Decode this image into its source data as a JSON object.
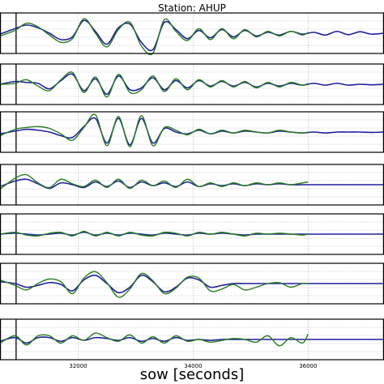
{
  "chart_data": {
    "type": "line",
    "title": "Station: AHUP",
    "xlabel": "sow [seconds]",
    "xlim": [
      30640,
      37320
    ],
    "xticks": [
      32000,
      34000,
      36000
    ],
    "xtick_labels": [
      "32000",
      "34000",
      "36000"
    ],
    "event_time": 30920,
    "grid": true,
    "colors": {
      "synthetic": "#1f1fa0",
      "observed": "#2a7d1f"
    },
    "panels": [
      {
        "synthetic": {
          "x": [
            30640,
            30900,
            31100,
            31300,
            31500,
            31700,
            31900,
            32100,
            32300,
            32500,
            32700,
            32900,
            33100,
            33300,
            33500,
            33700,
            33900,
            34100,
            34300,
            34500,
            34700,
            34900,
            35100,
            35300,
            35500,
            35700,
            35900,
            36100,
            36300,
            36500,
            36700,
            36900,
            37100,
            37320
          ],
          "y": [
            -0.05,
            0.25,
            0.45,
            0.3,
            0.0,
            -0.35,
            -0.2,
            0.7,
            0.1,
            -0.6,
            0.3,
            0.5,
            -0.5,
            -0.9,
            0.6,
            0.2,
            -0.3,
            0.15,
            -0.25,
            0.2,
            -0.2,
            0.15,
            -0.15,
            0.05,
            -0.1,
            0.1,
            -0.05,
            0.05,
            -0.1,
            0.1,
            -0.08,
            0.08,
            -0.05,
            0.0
          ]
        },
        "observed": {
          "x": [
            30640,
            30900,
            31100,
            31300,
            31500,
            31700,
            31900,
            32100,
            32300,
            32500,
            32700,
            32900,
            33100,
            33300,
            33500,
            33700,
            33900,
            34100,
            34300,
            34500,
            34700,
            34900,
            35100,
            35300,
            35500,
            35700,
            35900,
            36000
          ],
          "y": [
            -0.15,
            0.15,
            0.55,
            0.35,
            -0.1,
            -0.5,
            -0.3,
            0.8,
            0.0,
            -0.75,
            0.2,
            0.6,
            -0.7,
            -1.1,
            0.75,
            0.1,
            -0.4,
            0.25,
            -0.35,
            0.25,
            -0.3,
            0.2,
            -0.2,
            0.1,
            -0.15,
            0.1,
            -0.1,
            0.05
          ]
        }
      },
      {
        "synthetic": {
          "x": [
            30640,
            30900,
            31100,
            31300,
            31500,
            31700,
            31900,
            32100,
            32300,
            32500,
            32700,
            32900,
            33100,
            33300,
            33500,
            33700,
            33900,
            34100,
            34300,
            34500,
            34700,
            34900,
            35100,
            35300,
            35500,
            35700,
            35900,
            36100,
            36300,
            36500,
            36700,
            36900,
            37100,
            37320
          ],
          "y": [
            0.0,
            0.15,
            0.1,
            0.05,
            -0.25,
            0.2,
            0.55,
            -0.35,
            0.3,
            -0.55,
            0.45,
            -0.3,
            -0.2,
            0.35,
            -0.3,
            0.2,
            -0.2,
            0.2,
            -0.1,
            0.15,
            -0.1,
            0.1,
            -0.15,
            0.05,
            -0.1,
            0.05,
            -0.05,
            0.05,
            -0.05,
            0.05,
            -0.05,
            0.0,
            -0.03,
            0.0
          ]
        },
        "observed": {
          "x": [
            30640,
            30900,
            31100,
            31300,
            31500,
            31700,
            31900,
            32100,
            32300,
            32500,
            32700,
            32900,
            33100,
            33300,
            33500,
            33700,
            33900,
            34100,
            34300,
            34500,
            34700,
            34900,
            35100,
            35300,
            35500,
            35700,
            35900,
            36000
          ],
          "y": [
            0.0,
            0.05,
            0.25,
            -0.1,
            -0.35,
            0.25,
            0.65,
            -0.45,
            0.4,
            -0.7,
            0.55,
            -0.45,
            -0.3,
            0.45,
            -0.4,
            0.3,
            -0.3,
            0.25,
            -0.15,
            0.2,
            -0.15,
            0.15,
            -0.2,
            0.1,
            -0.15,
            0.1,
            -0.05,
            0.05
          ]
        }
      },
      {
        "synthetic": {
          "x": [
            30640,
            30900,
            31100,
            31300,
            31500,
            31700,
            31900,
            32100,
            32300,
            32500,
            32700,
            32900,
            33100,
            33300,
            33500,
            33700,
            33900,
            34100,
            34300,
            34500,
            34700,
            34900,
            35100,
            35300,
            35500,
            35700,
            35900,
            36100,
            36300,
            36500,
            36700,
            36900,
            37100,
            37320
          ],
          "y": [
            -0.1,
            0.05,
            0.15,
            0.1,
            0.0,
            -0.2,
            -0.3,
            0.3,
            0.75,
            -0.6,
            0.75,
            -0.7,
            0.75,
            -0.6,
            0.2,
            0.0,
            -0.1,
            0.1,
            -0.1,
            0.05,
            -0.05,
            0.05,
            0.0,
            -0.05,
            0.05,
            0.0,
            -0.05,
            0.0,
            -0.05,
            0.0,
            0.0,
            0.0,
            -0.02,
            0.0
          ]
        },
        "observed": {
          "x": [
            30640,
            30900,
            31100,
            31300,
            31500,
            31700,
            31900,
            32100,
            32300,
            32500,
            32700,
            32900,
            33100,
            33300,
            33500,
            33700,
            33900,
            34100,
            34300,
            34500,
            34700,
            34900,
            35100,
            35300,
            35500,
            35700,
            35900,
            36000
          ],
          "y": [
            -0.2,
            0.15,
            0.25,
            0.3,
            0.2,
            -0.1,
            -0.45,
            0.25,
            0.95,
            -0.75,
            0.85,
            -0.8,
            0.9,
            -0.75,
            0.25,
            0.1,
            -0.15,
            0.15,
            -0.1,
            0.1,
            -0.05,
            0.1,
            0.0,
            -0.05,
            0.1,
            0.0,
            -0.05,
            0.0
          ]
        }
      },
      {
        "synthetic": {
          "x": [
            30640,
            30900,
            31100,
            31300,
            31500,
            31700,
            31900,
            32100,
            32300,
            32500,
            32700,
            32900,
            33100,
            33300,
            33500,
            33700,
            33900,
            34100,
            34300,
            34500,
            34700,
            34900,
            35100,
            35300,
            35500,
            35700,
            35900,
            36100,
            36300,
            36500,
            36700,
            36900,
            37100,
            37320
          ],
          "y": [
            -0.1,
            0.2,
            0.3,
            0.05,
            -0.2,
            0.1,
            0.0,
            -0.15,
            0.15,
            -0.1,
            0.2,
            -0.15,
            0.15,
            -0.05,
            0.1,
            -0.1,
            0.15,
            -0.1,
            0.05,
            -0.05,
            0.05,
            -0.05,
            0.05,
            0.0,
            0.05,
            0.0,
            0.0,
            0.0,
            0.0,
            0.0,
            0.0,
            0.0,
            0.0,
            0.0
          ]
        },
        "observed": {
          "x": [
            30640,
            30900,
            31100,
            31300,
            31500,
            31700,
            31900,
            32100,
            32300,
            32500,
            32700,
            32900,
            33100,
            33300,
            33500,
            33700,
            33900,
            34100,
            34300,
            34500,
            34700,
            34900,
            35100,
            35300,
            35500,
            35700,
            35900,
            36000
          ],
          "y": [
            -0.25,
            0.35,
            0.55,
            0.1,
            -0.15,
            0.3,
            0.05,
            -0.1,
            0.25,
            -0.15,
            0.3,
            -0.2,
            0.25,
            -0.05,
            0.2,
            -0.15,
            0.3,
            -0.1,
            0.1,
            -0.1,
            0.1,
            -0.05,
            0.1,
            0.0,
            0.1,
            0.0,
            0.1,
            0.15
          ]
        }
      },
      {
        "synthetic": {
          "x": [
            30640,
            30900,
            31100,
            31300,
            31500,
            31700,
            31900,
            32100,
            32300,
            32500,
            32700,
            32900,
            33100,
            33300,
            33500,
            33700,
            33900,
            34100,
            34300,
            34500,
            34700,
            34900,
            35100,
            35300,
            35500,
            35700,
            35900,
            36100,
            36300,
            36500,
            36700,
            36900,
            37100,
            37320
          ],
          "y": [
            0.0,
            0.05,
            0.0,
            -0.05,
            0.0,
            0.05,
            -0.05,
            0.1,
            -0.05,
            0.05,
            -0.05,
            0.05,
            0.0,
            -0.05,
            0.05,
            0.0,
            -0.05,
            0.05,
            0.0,
            0.05,
            0.0,
            -0.05,
            0.0,
            0.0,
            0.0,
            0.0,
            0.0,
            0.0,
            0.0,
            0.0,
            0.0,
            0.0,
            0.0,
            0.0
          ]
        },
        "observed": {
          "x": [
            30640,
            30900,
            31100,
            31300,
            31500,
            31700,
            31900,
            32100,
            32300,
            32500,
            32700,
            32900,
            33100,
            33300,
            33500,
            33700,
            33900,
            34100,
            34300,
            34500,
            34700,
            34900,
            35100,
            35300,
            35500,
            35700,
            35900,
            36000
          ],
          "y": [
            0.0,
            0.1,
            -0.05,
            -0.1,
            0.05,
            0.1,
            -0.1,
            0.15,
            -0.1,
            0.1,
            -0.1,
            0.1,
            -0.05,
            -0.1,
            0.1,
            0.05,
            -0.1,
            0.1,
            0.0,
            0.1,
            0.0,
            -0.1,
            0.05,
            0.0,
            0.05,
            0.0,
            -0.05,
            0.0
          ]
        }
      },
      {
        "synthetic": {
          "x": [
            30640,
            30900,
            31100,
            31300,
            31500,
            31700,
            31900,
            32100,
            32300,
            32500,
            32700,
            32900,
            33100,
            33300,
            33500,
            33700,
            33900,
            34100,
            34300,
            34500,
            34700,
            34900,
            35100,
            35300,
            35500,
            35700,
            35900,
            36100,
            36300,
            36500,
            36700,
            36900,
            37100,
            37320
          ],
          "y": [
            0.1,
            0.0,
            -0.2,
            -0.1,
            0.05,
            -0.05,
            -0.4,
            0.2,
            0.45,
            0.0,
            -0.5,
            -0.2,
            0.45,
            0.1,
            -0.45,
            -0.2,
            0.3,
            0.2,
            -0.2,
            -0.1,
            0.0,
            0.0,
            0.0,
            0.0,
            0.0,
            0.0,
            0.0,
            0.0,
            0.0,
            0.0,
            0.0,
            0.0,
            0.0,
            0.0
          ]
        },
        "observed": {
          "x": [
            30640,
            30900,
            31100,
            31300,
            31500,
            31700,
            31900,
            32100,
            32300,
            32500,
            32700,
            32900,
            33100,
            33300,
            33500,
            33700,
            33900,
            34100,
            34300,
            34500,
            34700,
            34900,
            35100,
            35300,
            35500,
            35700,
            35900,
            36000
          ],
          "y": [
            0.2,
            -0.1,
            -0.35,
            0.0,
            0.25,
            0.1,
            -0.55,
            0.3,
            0.65,
            0.05,
            -0.75,
            -0.3,
            0.55,
            0.15,
            -0.55,
            -0.25,
            0.35,
            0.3,
            -0.4,
            -0.3,
            -0.05,
            -0.35,
            -0.2,
            0.0,
            0.05,
            -0.2,
            0.0,
            0.0
          ]
        }
      },
      {
        "synthetic": {
          "x": [
            30640,
            30900,
            31100,
            31300,
            31500,
            31700,
            31900,
            32100,
            32300,
            32500,
            32700,
            32900,
            33100,
            33300,
            33500,
            33700,
            33900,
            34100,
            34300,
            34500,
            34700,
            34900,
            35100,
            35300,
            35500,
            35700,
            35900,
            36100,
            36300,
            36500,
            36700,
            36900,
            37100,
            37320
          ],
          "y": [
            -0.1,
            0.1,
            -0.2,
            0.1,
            0.1,
            -0.1,
            0.1,
            -0.05,
            0.1,
            0.05,
            -0.05,
            0.1,
            -0.1,
            0.05,
            -0.1,
            0.1,
            -0.05,
            0.0,
            -0.05,
            0.0,
            0.0,
            0.0,
            0.0,
            0.0,
            0.0,
            0.0,
            0.0,
            0.0,
            0.0,
            0.0,
            0.0,
            0.0,
            0.0,
            0.0
          ]
        },
        "observed": {
          "x": [
            30640,
            30900,
            31100,
            31300,
            31500,
            31700,
            31900,
            32100,
            32300,
            32500,
            32700,
            32900,
            33100,
            33300,
            33500,
            33700,
            33900,
            34100,
            34300,
            34500,
            34700,
            34900,
            35100,
            35300,
            35500,
            35700,
            35900,
            36000
          ],
          "y": [
            -0.2,
            0.2,
            -0.3,
            0.2,
            0.2,
            -0.2,
            0.2,
            -0.05,
            0.35,
            0.1,
            -0.1,
            0.25,
            -0.2,
            0.15,
            -0.2,
            0.2,
            -0.1,
            0.0,
            -0.15,
            -0.05,
            0.05,
            0.0,
            -0.15,
            0.2,
            -0.35,
            0.1,
            -0.2,
            0.3
          ]
        }
      }
    ]
  }
}
